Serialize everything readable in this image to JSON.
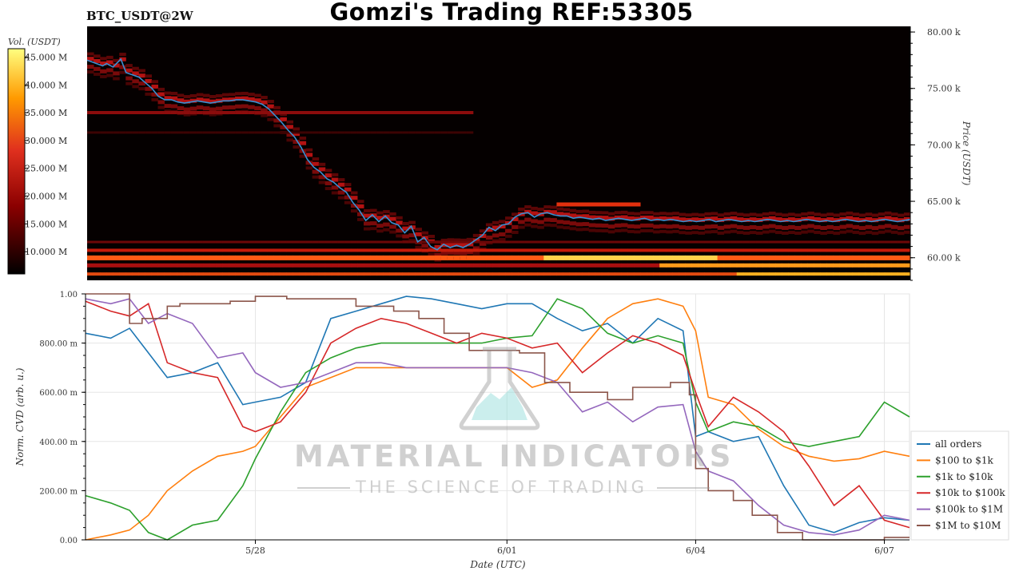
{
  "header": {
    "title": "Gomzi's Trading REF:53305",
    "pair": "BTC_USDT@2W"
  },
  "watermark": {
    "line1": "MATERIAL INDICATORS",
    "line2": "THE SCIENCE OF TRADING",
    "icon": "flask-icon"
  },
  "chart_data": [
    {
      "type": "heatmap",
      "title": "",
      "ylabel": "Price (USDT)",
      "ylim": [
        58000,
        80500
      ],
      "yticks": [
        {
          "value": 80000,
          "label": "80.00 k"
        },
        {
          "value": 75000,
          "label": "75.00 k"
        },
        {
          "value": 70000,
          "label": "70.00 k"
        },
        {
          "value": 65000,
          "label": "65.00 k"
        },
        {
          "value": 60000,
          "label": "60.00 k"
        }
      ],
      "colorbar": {
        "label": "Vol. (USDT)",
        "range": [
          6000000,
          46500000
        ],
        "ticks": [
          {
            "value": 45000000,
            "label": "45.000 M"
          },
          {
            "value": 40000000,
            "label": "40.000 M"
          },
          {
            "value": 35000000,
            "label": "35.000 M"
          },
          {
            "value": 30000000,
            "label": "30.000 M"
          },
          {
            "value": 25000000,
            "label": "25.000 M"
          },
          {
            "value": 20000000,
            "label": "20.000 M"
          },
          {
            "value": 15000000,
            "label": "15.000 M"
          },
          {
            "value": 10000000,
            "label": "10.000 M"
          }
        ]
      },
      "price_line": {
        "color": "#3b8fd1",
        "x": [
          0,
          0.5,
          1.2,
          1.5,
          2.0,
          2.6,
          3.0,
          3.5,
          4.0,
          4.5,
          5.0,
          5.5,
          6.0,
          6.5,
          7.0,
          7.5,
          8.0,
          8.5,
          9.0,
          9.5,
          10.0,
          10.5,
          11.0,
          11.5,
          12.0,
          12.5,
          13.0,
          13.5,
          14.0,
          14.5,
          15.0,
          15.5,
          16.0,
          16.5,
          17.0,
          17.5,
          18.0,
          18.5,
          19.0,
          19.5,
          20.0,
          20.5,
          21.0,
          21.5,
          22.0,
          22.5,
          23.0,
          23.5,
          24.0,
          24.5,
          25.0,
          25.5,
          26.0,
          26.5,
          27.0,
          27.5,
          28.0,
          28.5,
          29.0,
          29.5,
          30.0,
          30.5,
          31.0,
          31.5,
          32.0,
          32.5,
          33.0,
          33.5,
          34.0,
          34.5,
          35.0,
          35.5,
          36.0,
          36.5,
          37.0,
          37.5,
          38.0,
          38.5,
          39.0,
          39.5,
          40.0,
          40.5,
          41.0,
          41.5,
          42.0,
          42.5,
          43.0,
          43.5,
          44.0,
          44.5,
          45.0,
          45.5,
          46.0,
          46.5,
          47.0,
          47.5,
          48.0,
          48.5,
          49.0,
          49.5,
          50.0,
          50.5,
          51.0,
          51.5,
          52.0,
          52.5,
          53.0,
          53.5,
          54.0,
          54.5,
          55.0,
          55.5,
          56.0,
          56.5,
          57.0,
          57.5,
          58.0,
          58.5,
          59.0,
          59.5,
          60.0,
          60.5,
          61.0,
          61.5,
          62.0,
          62.5,
          63.0,
          63.5,
          63.2
        ],
        "y": [
          77500,
          77300,
          77000,
          77200,
          76900,
          77600,
          76400,
          76200,
          76000,
          75500,
          75000,
          74300,
          74000,
          74000,
          73800,
          73700,
          73800,
          73900,
          73800,
          73700,
          73800,
          73900,
          73900,
          74000,
          74000,
          73900,
          73800,
          73600,
          73200,
          72600,
          72000,
          71300,
          70700,
          69800,
          68700,
          68000,
          67600,
          67000,
          66700,
          66200,
          65800,
          64900,
          64200,
          63300,
          63800,
          63200,
          63700,
          63100,
          62900,
          62200,
          62800,
          61400,
          61800,
          61000,
          60700,
          61200,
          60900,
          61100,
          60900,
          61200,
          61600,
          62000,
          62700,
          62400,
          62900,
          63000,
          63600,
          63900,
          64000,
          63600,
          63900,
          64000,
          63800,
          63700,
          63700,
          63500,
          63600,
          63500,
          63400,
          63500,
          63300,
          63400,
          63500,
          63400,
          63300,
          63400,
          63500,
          63300,
          63400,
          63300,
          63400,
          63300,
          63200,
          63300,
          63200,
          63300,
          63400,
          63200,
          63300,
          63400,
          63300,
          63200,
          63300,
          63200,
          63300,
          63400,
          63300,
          63200,
          63300,
          63200,
          63300,
          63400,
          63300,
          63200,
          63300,
          63200,
          63300,
          63400,
          63300,
          63200,
          63300,
          63200,
          63300,
          63400,
          63300,
          63200,
          63300,
          63400,
          63300
        ]
      }
    },
    {
      "type": "line",
      "title": "",
      "xlabel": "Date (UTC)",
      "ylabel": "Norm. CVD (arb. u.)",
      "xlim": [
        -3.7,
        9.4
      ],
      "ylim": [
        0,
        1
      ],
      "grid": true,
      "legend_position": "bottom-right",
      "xticks": [
        {
          "value": -1.0,
          "label": "5/28"
        },
        {
          "value": 3.0,
          "label": "6/01"
        },
        {
          "value": 6.0,
          "label": "6/04"
        },
        {
          "value": 9.0,
          "label": "6/07"
        }
      ],
      "yticks": [
        {
          "value": 0,
          "label": "0.00"
        },
        {
          "value": 0.2,
          "label": "200.00 m"
        },
        {
          "value": 0.4,
          "label": "400.00 m"
        },
        {
          "value": 0.6,
          "label": "600.00 m"
        },
        {
          "value": 0.8,
          "label": "800.00 m"
        },
        {
          "value": 1.0,
          "label": "1.00"
        }
      ],
      "series": [
        {
          "name": "all orders",
          "color": "#1f77b4",
          "x": [
            -3.7,
            -3.3,
            -3.0,
            -2.7,
            -2.4,
            -2.0,
            -1.6,
            -1.2,
            -1.0,
            -0.6,
            -0.2,
            0.2,
            0.6,
            1.0,
            1.4,
            1.8,
            2.2,
            2.6,
            3.0,
            3.4,
            3.8,
            4.2,
            4.6,
            5.0,
            5.4,
            5.8,
            6.0,
            6.2,
            6.6,
            7.0,
            7.4,
            7.8,
            8.2,
            8.6,
            9.0,
            9.4
          ],
          "y": [
            0.84,
            0.82,
            0.86,
            0.76,
            0.66,
            0.68,
            0.72,
            0.55,
            0.56,
            0.58,
            0.64,
            0.9,
            0.93,
            0.96,
            0.99,
            0.98,
            0.96,
            0.94,
            0.96,
            0.96,
            0.9,
            0.85,
            0.88,
            0.8,
            0.9,
            0.85,
            0.42,
            0.44,
            0.4,
            0.42,
            0.22,
            0.06,
            0.03,
            0.07,
            0.09,
            0.08
          ]
        },
        {
          "name": "$100 to $1k",
          "color": "#ff7f0e",
          "x": [
            -3.7,
            -3.3,
            -3.0,
            -2.7,
            -2.4,
            -2.0,
            -1.6,
            -1.2,
            -1.0,
            -0.6,
            -0.2,
            0.2,
            0.6,
            1.0,
            1.4,
            1.8,
            2.2,
            2.6,
            3.0,
            3.4,
            3.8,
            4.2,
            4.6,
            5.0,
            5.4,
            5.8,
            6.0,
            6.2,
            6.6,
            7.0,
            7.4,
            7.8,
            8.2,
            8.6,
            9.0,
            9.4
          ],
          "y": [
            0.0,
            0.02,
            0.04,
            0.1,
            0.2,
            0.28,
            0.34,
            0.36,
            0.38,
            0.5,
            0.62,
            0.66,
            0.7,
            0.7,
            0.7,
            0.7,
            0.7,
            0.7,
            0.7,
            0.62,
            0.65,
            0.78,
            0.9,
            0.96,
            0.98,
            0.95,
            0.85,
            0.58,
            0.55,
            0.45,
            0.38,
            0.34,
            0.32,
            0.33,
            0.36,
            0.34
          ]
        },
        {
          "name": "$1k to $10k",
          "color": "#2ca02c",
          "x": [
            -3.7,
            -3.3,
            -3.0,
            -2.7,
            -2.4,
            -2.0,
            -1.6,
            -1.2,
            -1.0,
            -0.6,
            -0.2,
            0.2,
            0.6,
            1.0,
            1.4,
            1.8,
            2.2,
            2.6,
            3.0,
            3.4,
            3.8,
            4.2,
            4.6,
            5.0,
            5.4,
            5.8,
            6.0,
            6.2,
            6.6,
            7.0,
            7.4,
            7.8,
            8.2,
            8.6,
            9.0,
            9.4
          ],
          "y": [
            0.18,
            0.15,
            0.12,
            0.03,
            0.0,
            0.06,
            0.08,
            0.22,
            0.33,
            0.52,
            0.68,
            0.74,
            0.78,
            0.8,
            0.8,
            0.8,
            0.8,
            0.8,
            0.82,
            0.83,
            0.98,
            0.94,
            0.84,
            0.8,
            0.83,
            0.8,
            0.56,
            0.44,
            0.48,
            0.46,
            0.4,
            0.38,
            0.4,
            0.42,
            0.56,
            0.5
          ]
        },
        {
          "name": "$10k to $100k",
          "color": "#d62728",
          "x": [
            -3.7,
            -3.3,
            -3.0,
            -2.7,
            -2.4,
            -2.0,
            -1.6,
            -1.2,
            -1.0,
            -0.6,
            -0.2,
            0.2,
            0.6,
            1.0,
            1.4,
            1.8,
            2.2,
            2.6,
            3.0,
            3.4,
            3.8,
            4.2,
            4.6,
            5.0,
            5.4,
            5.8,
            6.0,
            6.2,
            6.6,
            7.0,
            7.4,
            7.8,
            8.2,
            8.6,
            9.0,
            9.4
          ],
          "y": [
            0.97,
            0.93,
            0.91,
            0.96,
            0.72,
            0.68,
            0.66,
            0.46,
            0.44,
            0.48,
            0.6,
            0.8,
            0.86,
            0.9,
            0.88,
            0.84,
            0.8,
            0.84,
            0.82,
            0.78,
            0.8,
            0.68,
            0.76,
            0.83,
            0.8,
            0.75,
            0.6,
            0.46,
            0.58,
            0.52,
            0.44,
            0.3,
            0.14,
            0.22,
            0.08,
            0.05
          ]
        },
        {
          "name": "$100k to $1M",
          "color": "#9467bd",
          "x": [
            -3.7,
            -3.3,
            -3.0,
            -2.7,
            -2.4,
            -2.0,
            -1.6,
            -1.2,
            -1.0,
            -0.6,
            -0.2,
            0.2,
            0.6,
            1.0,
            1.4,
            1.8,
            2.2,
            2.6,
            3.0,
            3.4,
            3.8,
            4.2,
            4.6,
            5.0,
            5.4,
            5.8,
            6.0,
            6.2,
            6.6,
            7.0,
            7.4,
            7.8,
            8.2,
            8.6,
            9.0,
            9.4
          ],
          "y": [
            0.98,
            0.96,
            0.98,
            0.88,
            0.92,
            0.88,
            0.74,
            0.76,
            0.68,
            0.62,
            0.64,
            0.68,
            0.72,
            0.72,
            0.7,
            0.7,
            0.7,
            0.7,
            0.7,
            0.68,
            0.64,
            0.52,
            0.56,
            0.48,
            0.54,
            0.55,
            0.36,
            0.28,
            0.24,
            0.14,
            0.06,
            0.03,
            0.02,
            0.04,
            0.1,
            0.08
          ]
        },
        {
          "name": "$1M to $10M",
          "color": "#8c564b",
          "x": [
            -3.7,
            -3.2,
            -3.0,
            -2.8,
            -2.4,
            -2.2,
            -1.4,
            -1.0,
            -0.5,
            0.0,
            0.6,
            1.2,
            1.6,
            2.0,
            2.4,
            2.8,
            3.2,
            3.6,
            4.0,
            4.6,
            5.0,
            5.6,
            5.9,
            6.0,
            6.2,
            6.6,
            6.9,
            7.3,
            7.7,
            8.4,
            8.8,
            9.0,
            9.4
          ],
          "y": [
            1.0,
            1.0,
            0.88,
            0.9,
            0.95,
            0.96,
            0.97,
            0.99,
            0.98,
            0.98,
            0.95,
            0.93,
            0.9,
            0.84,
            0.77,
            0.77,
            0.76,
            0.64,
            0.6,
            0.57,
            0.62,
            0.64,
            0.59,
            0.29,
            0.2,
            0.16,
            0.1,
            0.03,
            0.0,
            0.0,
            0.0,
            0.01,
            0.01
          ]
        }
      ]
    }
  ]
}
